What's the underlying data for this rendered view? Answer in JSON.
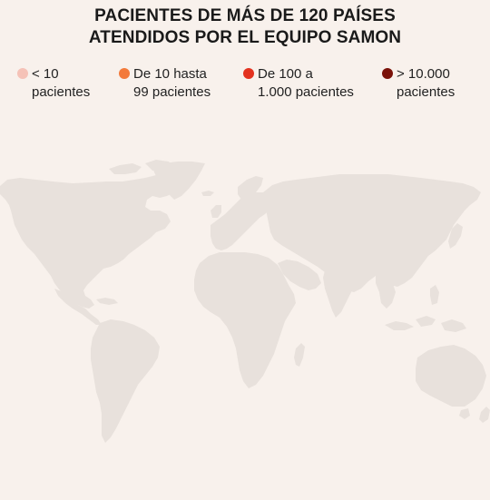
{
  "title": {
    "line1": "PACIENTES DE MÁS DE 120 PAÍSES",
    "line2": "ATENDIDOS POR EL EQUIPO SAMON"
  },
  "legend": [
    {
      "line1": "< 10",
      "line2": "pacientes",
      "color": "#f5c2b7"
    },
    {
      "line1": "De 10 hasta",
      "line2": "99 pacientes",
      "color": "#f37a3b"
    },
    {
      "line1": "De 100 a",
      "line2": "1.000 pacientes",
      "color": "#e3321f"
    },
    {
      "line1": "> 10.000",
      "line2": "pacientes",
      "color": "#7a1109"
    }
  ],
  "colors": {
    "background": "#f8f1ec",
    "land": "#e8e1dc"
  }
}
